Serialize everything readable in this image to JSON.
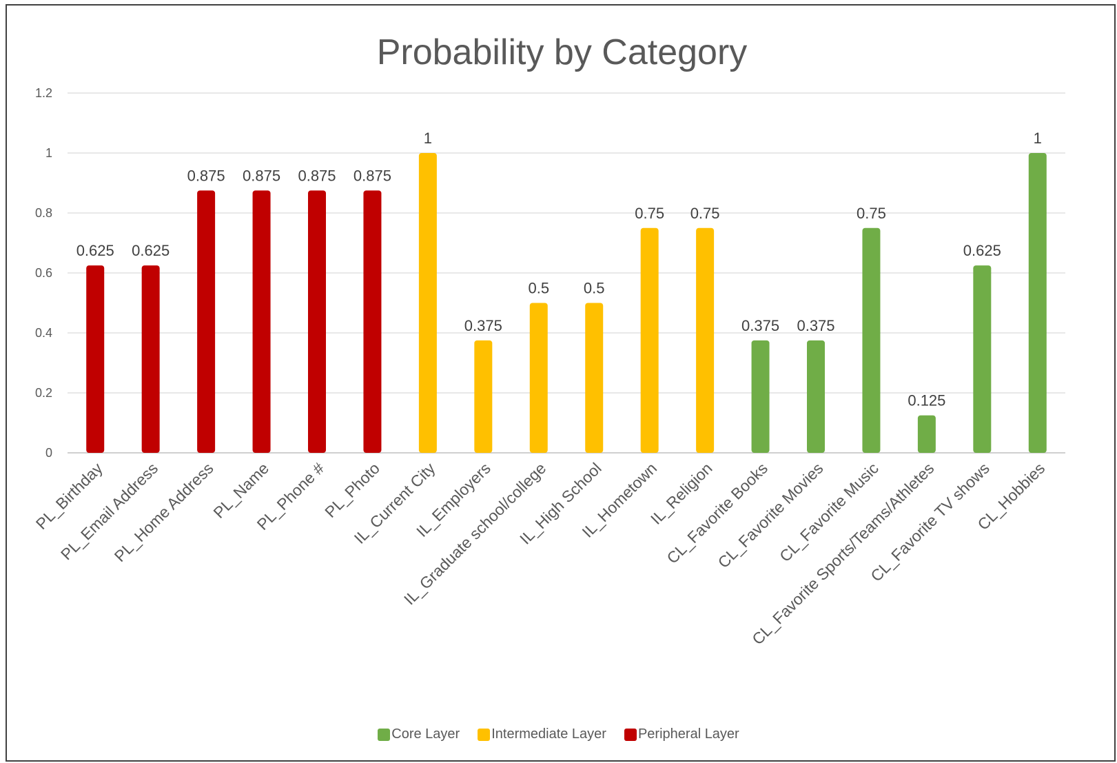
{
  "chart_data": {
    "type": "bar",
    "title": "Probability by Category",
    "xlabel": "",
    "ylabel": "",
    "ylim": [
      0,
      1.2
    ],
    "yticks": [
      "0",
      "0.2",
      "0.4",
      "0.6",
      "0.8",
      "1",
      "1.2"
    ],
    "grid": true,
    "legend_position": "bottom",
    "categories": [
      "PL_Birthday",
      "PL_Email Address",
      "PL_Home Address",
      "PL_Name",
      "PL_Phone #",
      "PL_Photo",
      "IL_Current City",
      "IL_Employers",
      "IL_Graduate school/college",
      "IL_High School",
      "IL_Hometown",
      "IL_Religion",
      "CL_Favorite Books",
      "CL_Favorite Movies",
      "CL_Favorite Music",
      "CL_Favorite Sports/Teams/Athletes",
      "CL_Favorite TV shows",
      "CL_Hobbies"
    ],
    "values": [
      0.625,
      0.625,
      0.875,
      0.875,
      0.875,
      0.875,
      1,
      0.375,
      0.5,
      0.5,
      0.75,
      0.75,
      0.375,
      0.375,
      0.75,
      0.125,
      0.625,
      1
    ],
    "data_labels": [
      "0.625",
      "0.625",
      "0.875",
      "0.875",
      "0.875",
      "0.875",
      "1",
      "0.375",
      "0.5",
      "0.5",
      "0.75",
      "0.75",
      "0.375",
      "0.375",
      "0.75",
      "0.125",
      "0.625",
      "1"
    ],
    "layers": [
      "peripheral",
      "peripheral",
      "peripheral",
      "peripheral",
      "peripheral",
      "peripheral",
      "intermediate",
      "intermediate",
      "intermediate",
      "intermediate",
      "intermediate",
      "intermediate",
      "core",
      "core",
      "core",
      "core",
      "core",
      "core"
    ],
    "legend": [
      {
        "key": "core",
        "label": "Core Layer",
        "color": "#70AD47"
      },
      {
        "key": "intermediate",
        "label": "Intermediate Layer",
        "color": "#FFC000"
      },
      {
        "key": "peripheral",
        "label": "Peripheral Layer",
        "color": "#C00000"
      }
    ]
  }
}
